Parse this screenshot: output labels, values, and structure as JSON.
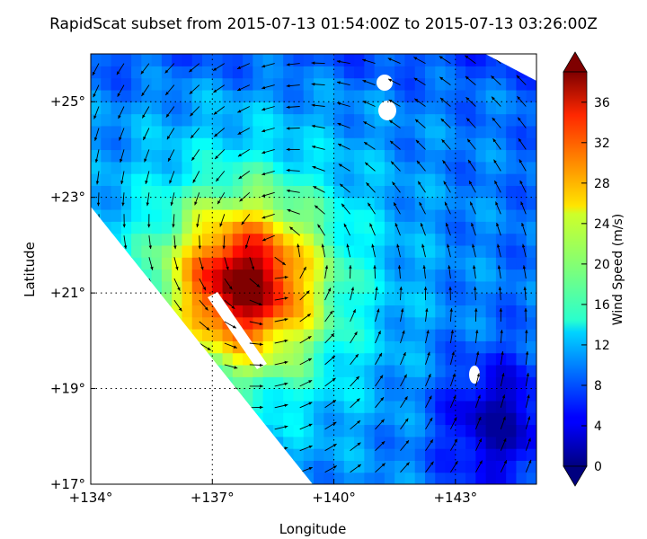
{
  "chart_data": {
    "type": "heatmap",
    "title": "RapidScat subset from 2015-07-13 01:54:00Z to 2015-07-13 03:26:00Z",
    "xlabel": "Longitude",
    "ylabel": "Latitude",
    "xlim": [
      134,
      145
    ],
    "ylim": [
      17,
      26
    ],
    "x_ticks": [
      134,
      137,
      140,
      143
    ],
    "x_tick_labels": [
      "+134°",
      "+137°",
      "+140°",
      "+143°"
    ],
    "y_ticks": [
      17,
      19,
      21,
      23,
      25
    ],
    "y_tick_labels": [
      "+17°",
      "+19°",
      "+21°",
      "+23°",
      "+25°"
    ],
    "grid": "dotted",
    "colorbar": {
      "label": "Wind Speed (m/s)",
      "min": 0,
      "max": 39,
      "ticks": [
        0,
        4,
        8,
        12,
        16,
        20,
        24,
        28,
        32,
        36
      ],
      "colormap": "jet",
      "extend": "both"
    },
    "field": {
      "description_units": "m/s",
      "peak_location": {
        "lon": 137.8,
        "lat": 21.2
      },
      "peak_speed": 36,
      "background_speed": 9
    },
    "colors": {
      "grid": "#000000",
      "swath_edge": "#ffffff"
    }
  }
}
